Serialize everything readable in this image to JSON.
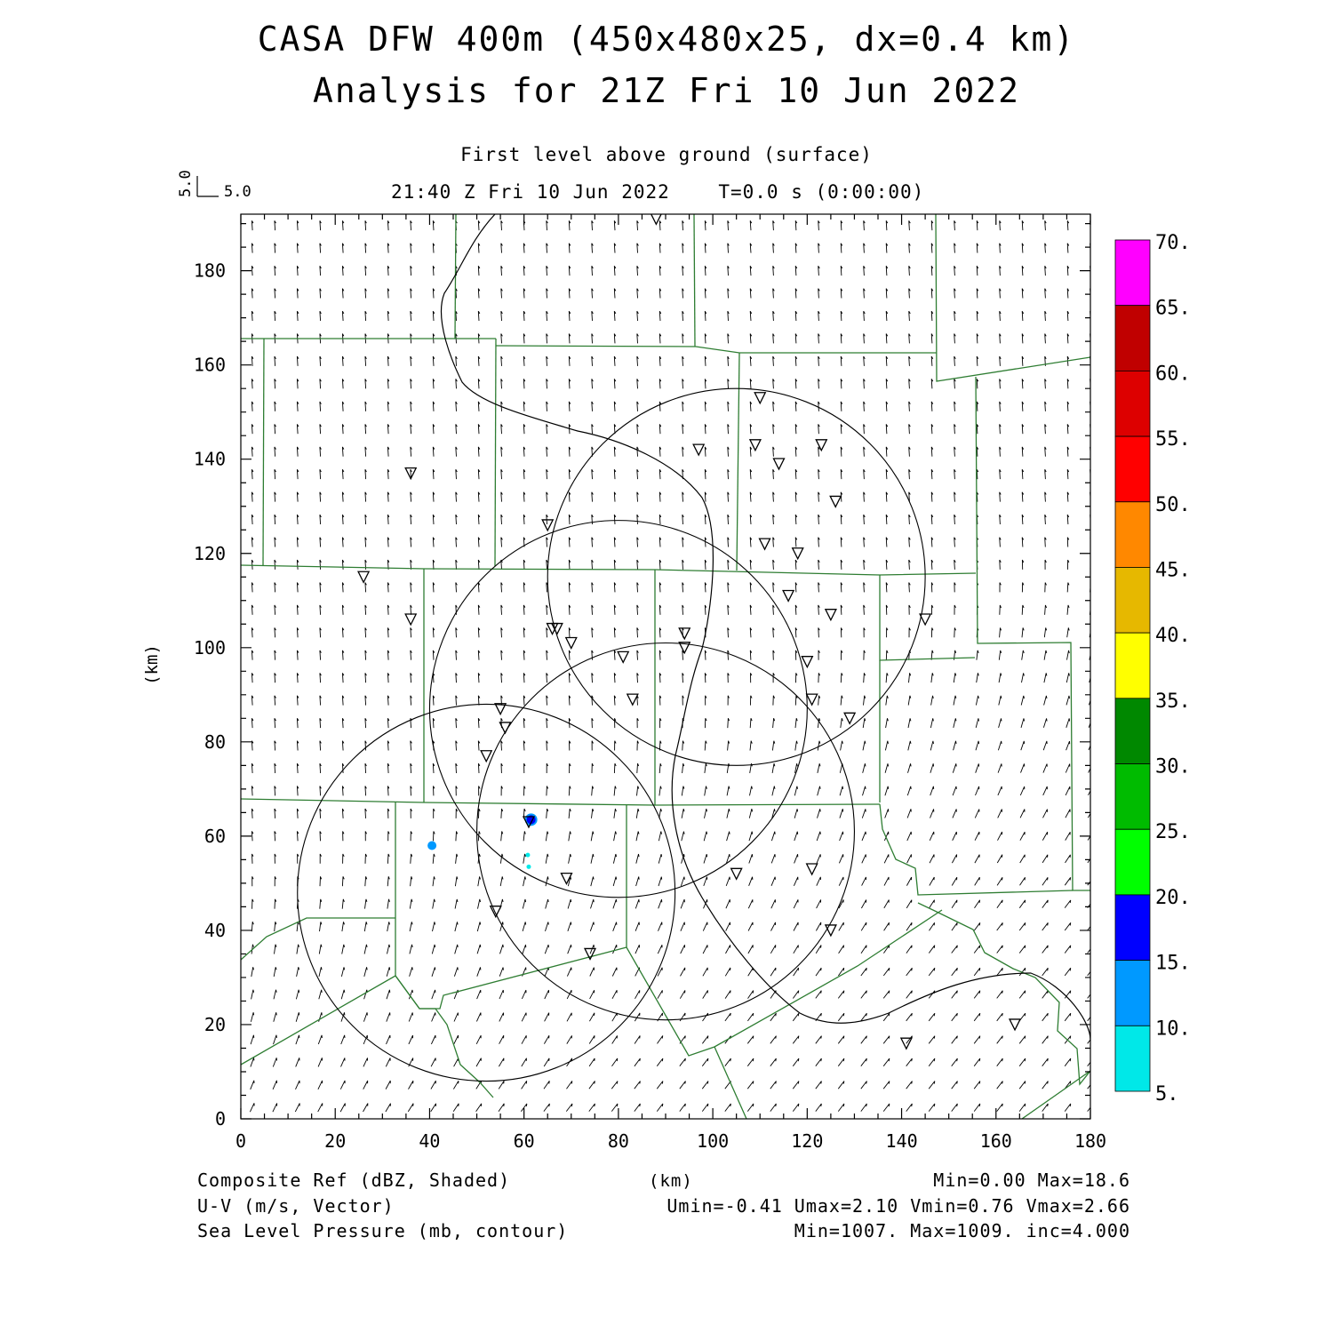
{
  "title": "CASA DFW 400m (450x480x25, dx=0.4 km)",
  "subtitle": "Analysis for 21Z Fri 10 Jun 2022",
  "level_label": "First level above ground (surface)",
  "time_label": "21:40 Z Fri 10 Jun 2022    T=0.0 s (0:00:00)",
  "vector_key": {
    "value_x": "5.0",
    "value_y": "5.0"
  },
  "x_axis_label": "(km)",
  "y_axis_label": "(km)",
  "x_ticks": [
    "0",
    "20",
    "40",
    "60",
    "80",
    "100",
    "120",
    "140",
    "160",
    "180"
  ],
  "y_ticks": [
    "0",
    "20",
    "40",
    "60",
    "80",
    "100",
    "120",
    "140",
    "160",
    "180"
  ],
  "colorbar": {
    "labels": [
      "70.",
      "65.",
      "60.",
      "55.",
      "50.",
      "45.",
      "40.",
      "35.",
      "30.",
      "25.",
      "20.",
      "15.",
      "10.",
      "5."
    ],
    "colors": [
      "#ff00ff",
      "#c00000",
      "#dd0000",
      "#ff0000",
      "#ff8800",
      "#e6b800",
      "#ffff00",
      "#008800",
      "#00bb00",
      "#00ff00",
      "#0000ff",
      "#0099ff",
      "#00e8e8"
    ]
  },
  "footer": {
    "left": [
      "Composite Ref (dBZ, Shaded)",
      "U-V (m/s, Vector)",
      "Sea Level Pressure (mb, contour)"
    ],
    "center": "(km)",
    "right": [
      "Min=0.00 Max=18.6",
      "Umin=-0.41 Umax=2.10 Vmin=0.76 Vmax=2.66",
      "Min=1007. Max=1009. inc=4.000"
    ]
  },
  "radars": [
    {
      "cx": 105,
      "cy": 115,
      "r": 40
    },
    {
      "cx": 80,
      "cy": 87,
      "r": 40
    },
    {
      "cx": 90,
      "cy": 61,
      "r": 40
    },
    {
      "cx": 52,
      "cy": 48,
      "r": 40
    }
  ],
  "stations": [
    [
      88,
      191
    ],
    [
      110,
      153
    ],
    [
      97,
      142
    ],
    [
      109,
      143
    ],
    [
      123,
      143
    ],
    [
      114,
      139
    ],
    [
      126,
      131
    ],
    [
      36,
      137
    ],
    [
      65,
      126
    ],
    [
      111,
      122
    ],
    [
      118,
      120
    ],
    [
      26,
      115
    ],
    [
      116,
      111
    ],
    [
      125,
      107
    ],
    [
      36,
      106
    ],
    [
      145,
      106
    ],
    [
      67,
      104
    ],
    [
      66,
      104
    ],
    [
      70,
      101
    ],
    [
      94,
      103
    ],
    [
      94,
      100
    ],
    [
      81,
      98
    ],
    [
      120,
      97
    ],
    [
      83,
      89
    ],
    [
      121,
      89
    ],
    [
      55,
      87
    ],
    [
      56,
      83
    ],
    [
      129,
      85
    ],
    [
      52,
      77
    ],
    [
      61,
      63
    ],
    [
      121,
      53
    ],
    [
      105,
      52
    ],
    [
      69,
      51
    ],
    [
      54,
      44
    ],
    [
      125,
      40
    ],
    [
      74,
      35
    ],
    [
      164,
      20
    ],
    [
      141,
      16
    ]
  ],
  "reflectivity_cells": [
    {
      "x": 61.5,
      "y": 63.5,
      "dbz": 15
    },
    {
      "x": 40.5,
      "y": 58,
      "dbz": 11
    },
    {
      "x": 60.8,
      "y": 56,
      "dbz": 7
    },
    {
      "x": 61,
      "y": 53.5,
      "dbz": 6
    }
  ]
}
